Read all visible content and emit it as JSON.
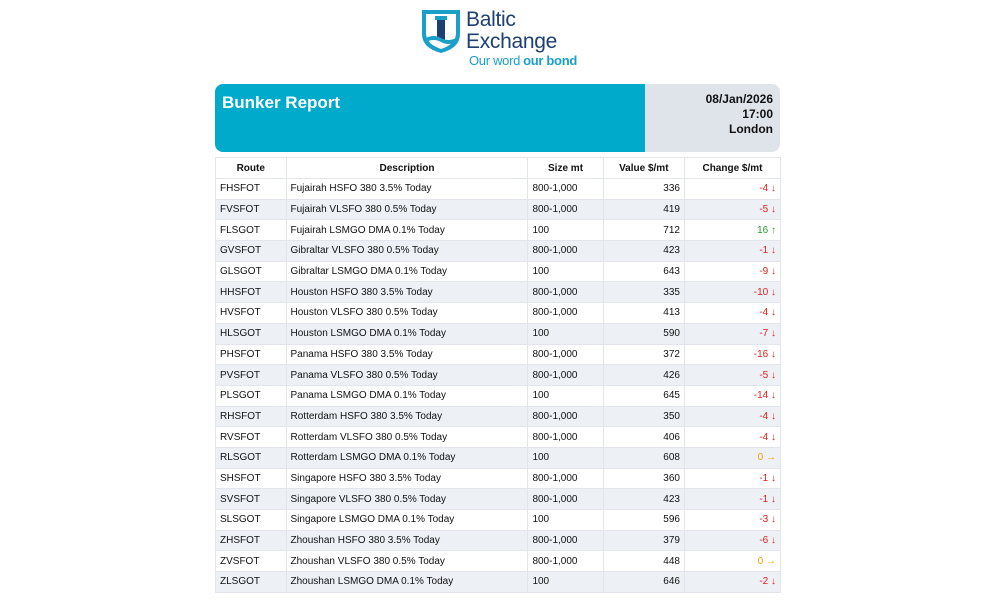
{
  "logo": {
    "line1": "Baltic",
    "line2": "Exchange",
    "tagline_light": "Our word",
    "tagline_bold": "our bond"
  },
  "header": {
    "title": "Bunker Report",
    "date": "08/Jan/2026",
    "time": "17:00",
    "location": "London"
  },
  "table": {
    "columns": [
      "Route",
      "Description",
      "Size mt",
      "Value $/mt",
      "Change $/mt"
    ],
    "rows": [
      [
        "FHSFOT",
        "Fujairah HSFO 380 3.5% Today",
        "800-1,000",
        336,
        -4,
        "↓"
      ],
      [
        "FVSFOT",
        "Fujairah VLSFO 380 0.5% Today",
        "800-1,000",
        419,
        -5,
        "↓"
      ],
      [
        "FLSGOT",
        "Fujairah LSMGO DMA 0.1% Today",
        "100",
        712,
        16,
        "↑"
      ],
      [
        "GVSFOT",
        "Gibraltar VLSFO 380 0.5% Today",
        "800-1,000",
        423,
        -1,
        "↓"
      ],
      [
        "GLSGOT",
        "Gibraltar LSMGO DMA 0.1% Today",
        "100",
        643,
        -9,
        "↓"
      ],
      [
        "HHSFOT",
        "Houston HSFO 380 3.5% Today",
        "800-1,000",
        335,
        -10,
        "↓"
      ],
      [
        "HVSFOT",
        "Houston VLSFO 380 0.5% Today",
        "800-1,000",
        413,
        -4,
        "↓"
      ],
      [
        "HLSGOT",
        "Houston LSMGO DMA 0.1% Today",
        "100",
        590,
        -7,
        "↓"
      ],
      [
        "PHSFOT",
        "Panama HSFO 380 3.5% Today",
        "800-1,000",
        372,
        -16,
        "↓"
      ],
      [
        "PVSFOT",
        "Panama VLSFO 380 0.5% Today",
        "800-1,000",
        426,
        -5,
        "↓"
      ],
      [
        "PLSGOT",
        "Panama LSMGO DMA 0.1% Today",
        "100",
        645,
        -14,
        "↓"
      ],
      [
        "RHSFOT",
        "Rotterdam HSFO 380 3.5% Today",
        "800-1,000",
        350,
        -4,
        "↓"
      ],
      [
        "RVSFOT",
        "Rotterdam VLSFO 380 0.5% Today",
        "800-1,000",
        406,
        -4,
        "↓"
      ],
      [
        "RLSGOT",
        "Rotterdam LSMGO DMA 0.1% Today",
        "100",
        608,
        0,
        "→"
      ],
      [
        "SHSFOT",
        "Singapore HSFO 380 3.5% Today",
        "800-1,000",
        360,
        -1,
        "↓"
      ],
      [
        "SVSFOT",
        "Singapore VLSFO 380 0.5% Today",
        "800-1,000",
        423,
        -1,
        "↓"
      ],
      [
        "SLSGOT",
        "Singapore LSMGO DMA 0.1% Today",
        "100",
        596,
        -3,
        "↓"
      ],
      [
        "ZHSFOT",
        "Zhoushan HSFO 380 3.5% Today",
        "800-1,000",
        379,
        -6,
        "↓"
      ],
      [
        "ZVSFOT",
        "Zhoushan VLSFO 380 0.5% Today",
        "800-1,000",
        448,
        0,
        "→"
      ],
      [
        "ZLSGOT",
        "Zhoushan LSMGO DMA 0.1% Today",
        "100",
        646,
        -2,
        "↓"
      ]
    ]
  }
}
